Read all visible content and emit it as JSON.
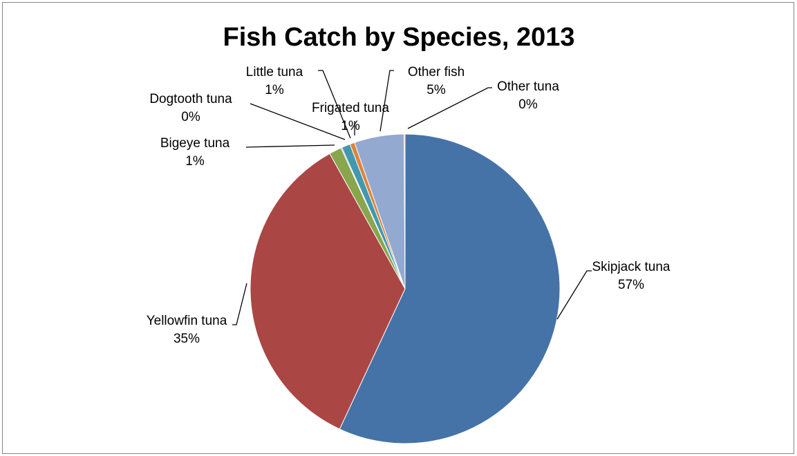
{
  "chart_data": {
    "type": "pie",
    "title": "Fish Catch by Species, 2013",
    "start_angle_deg": 0,
    "direction": "clockwise",
    "categories": [
      "Skipjack tuna",
      "Yellowfin tuna",
      "Bigeye tuna",
      "Dogtooth tuna",
      "Little tuna",
      "Frigated tuna",
      "Other fish",
      "Other tuna"
    ],
    "values": [
      57.0,
      35.0,
      1.3,
      0.1,
      0.9,
      0.5,
      5.2,
      0.1
    ],
    "percent_labels": [
      "57%",
      "35%",
      "1%",
      "0%",
      "1%",
      "1%",
      "5%",
      "0%"
    ],
    "colors": [
      "#4573A7",
      "#AA4644",
      "#89A54E",
      "#71588F",
      "#4298AF",
      "#DB843D",
      "#93A9CF",
      "#D19392"
    ],
    "legend": "none"
  }
}
